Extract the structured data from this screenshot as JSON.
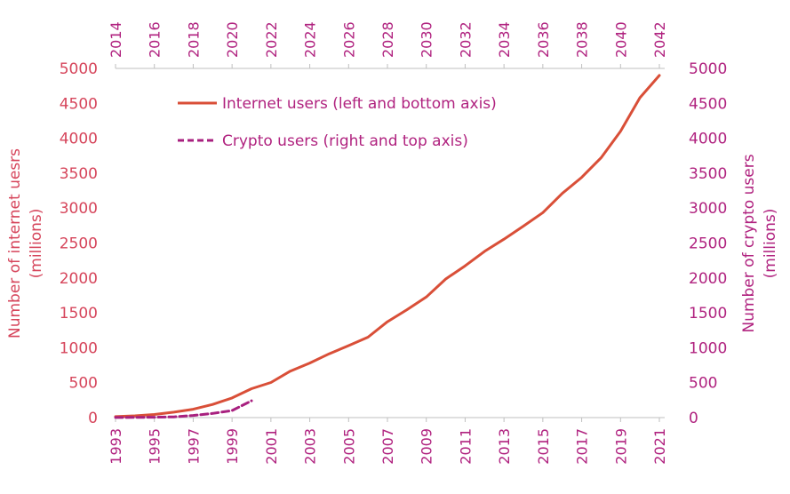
{
  "chart_data": {
    "type": "line",
    "xlabel_bottom": "",
    "xlabel_top": "",
    "ylabel_left": [
      "Number of internet uesrs",
      "(millions)"
    ],
    "ylabel_right": [
      "Number of crypto users",
      "(millions)"
    ],
    "ylim": [
      0,
      5000
    ],
    "y_ticks": [
      0,
      500,
      1000,
      1500,
      2000,
      2500,
      3000,
      3500,
      4000,
      4500,
      5000
    ],
    "x_bottom_range": [
      1993,
      2021
    ],
    "x_bottom_ticks": [
      1993,
      1995,
      1997,
      1999,
      2001,
      2003,
      2005,
      2007,
      2009,
      2011,
      2013,
      2015,
      2017,
      2019,
      2021
    ],
    "x_top_range": [
      2014,
      2042
    ],
    "x_top_ticks": [
      2014,
      2016,
      2018,
      2020,
      2022,
      2024,
      2026,
      2028,
      2030,
      2032,
      2034,
      2036,
      2038,
      2040,
      2042
    ],
    "legend_position": "top-left",
    "grid": false,
    "series": [
      {
        "name": "Internet users (left and bottom axis)",
        "axis": "left-bottom",
        "color": "#D94F38",
        "style": "solid",
        "x": [
          1993,
          1994,
          1995,
          1996,
          1997,
          1998,
          1999,
          2000,
          2001,
          2002,
          2003,
          2004,
          2005,
          2006,
          2007,
          2008,
          2009,
          2010,
          2011,
          2012,
          2013,
          2014,
          2015,
          2016,
          2017,
          2018,
          2019,
          2020,
          2021
        ],
        "values": [
          14,
          25,
          45,
          77,
          120,
          188,
          281,
          414,
          502,
          665,
          781,
          913,
          1030,
          1151,
          1373,
          1545,
          1727,
          1985,
          2173,
          2380,
          2555,
          2742,
          2935,
          3210,
          3440,
          3720,
          4100,
          4580,
          4900
        ]
      },
      {
        "name": "Crypto users (right and top axis)",
        "axis": "right-top",
        "color": "#A8207F",
        "style": "dashed",
        "x": [
          2014,
          2015,
          2016,
          2017,
          2018,
          2019,
          2020,
          2021
        ],
        "values": [
          1,
          2,
          5,
          10,
          30,
          60,
          100,
          240
        ]
      }
    ]
  }
}
